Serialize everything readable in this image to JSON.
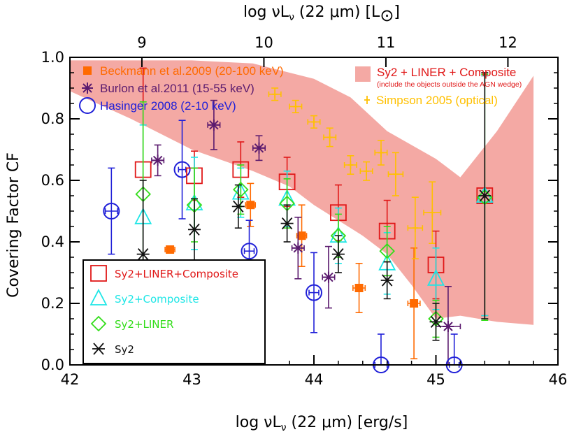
{
  "chart_data": {
    "type": "scatter",
    "title": "",
    "xlabel": "log  νL",
    "xlabel_sub": "ν",
    "xlabel_rest": " (22 μm) [erg/s]",
    "ylabel": "Covering Factor CF",
    "top_xlabel": "log  νL",
    "top_xlabel_sub": "ν",
    "top_xlabel_rest": " (22 μm) [L",
    "top_xlabel_sun": "⊙",
    "top_xlabel_end": "]",
    "xlim": [
      42,
      46
    ],
    "ylim": [
      0.0,
      1.0
    ],
    "x_ticks": [
      "42",
      "43",
      "44",
      "45",
      "46"
    ],
    "y_ticks": [
      "0.0",
      "0.2",
      "0.4",
      "0.6",
      "0.8",
      "1.0"
    ],
    "top_ticks": [
      "9",
      "10",
      "11",
      "12"
    ],
    "top_tick_positions_data": [
      42.59,
      43.59,
      44.59,
      45.59
    ],
    "shaded_region": {
      "name": "Sy2 + LINER + Composite",
      "note": "(include the objects outside the AGN wedge)",
      "color": "#f4a9a4",
      "upper": [
        [
          42.0,
          0.99
        ],
        [
          42.5,
          0.99
        ],
        [
          43.0,
          0.99
        ],
        [
          43.5,
          0.98
        ],
        [
          44.0,
          0.93
        ],
        [
          44.3,
          0.87
        ],
        [
          44.6,
          0.76
        ],
        [
          45.0,
          0.67
        ],
        [
          45.2,
          0.61
        ],
        [
          45.5,
          0.76
        ],
        [
          45.8,
          0.94
        ]
      ],
      "lower": [
        [
          45.8,
          0.13
        ],
        [
          45.5,
          0.14
        ],
        [
          45.2,
          0.16
        ],
        [
          45.0,
          0.15
        ],
        [
          44.8,
          0.26
        ],
        [
          44.6,
          0.36
        ],
        [
          44.4,
          0.42
        ],
        [
          44.2,
          0.47
        ],
        [
          44.0,
          0.52
        ],
        [
          43.8,
          0.58
        ],
        [
          43.5,
          0.63
        ],
        [
          43.0,
          0.7
        ],
        [
          42.5,
          0.8
        ],
        [
          42.0,
          0.89
        ]
      ]
    },
    "series": [
      {
        "name": "Beckmann et al.2009 (20-100 keV)",
        "color": "#ff6a00",
        "marker": "filled-square",
        "points": [
          [
            42.82,
            0.375,
            0.0,
            0.0,
            0.04
          ],
          [
            43.48,
            0.52,
            0.07,
            0.07,
            0.04
          ],
          [
            43.9,
            0.42,
            0.1,
            0.1,
            0.04
          ],
          [
            44.37,
            0.25,
            0.08,
            0.08,
            0.05
          ],
          [
            44.82,
            0.2,
            0.18,
            0.18,
            0.05
          ]
        ]
      },
      {
        "name": "Burlon et al.2011 (15-55 keV)",
        "color": "#5a1a6e",
        "marker": "star",
        "points": [
          [
            42.72,
            0.665,
            0.05,
            0.05,
            0.05
          ],
          [
            43.18,
            0.78,
            0.08,
            0.08,
            0.05
          ],
          [
            43.55,
            0.705,
            0.04,
            0.04,
            0.05
          ],
          [
            43.87,
            0.38,
            0.1,
            0.1,
            0.05
          ],
          [
            44.12,
            0.285,
            0.1,
            0.1,
            0.05
          ],
          [
            45.1,
            0.125,
            0.13,
            0.13,
            0.1
          ]
        ]
      },
      {
        "name": "Hasinger 2008 (2-10 keV)",
        "color": "#2020d8",
        "marker": "circle-plus",
        "points": [
          [
            42.34,
            0.5,
            0.14,
            0.14,
            0.05
          ],
          [
            42.92,
            0.635,
            0.16,
            0.16,
            0.03
          ],
          [
            43.47,
            0.37,
            0.1,
            0.1,
            0.04
          ],
          [
            44.0,
            0.235,
            0.13,
            0.13,
            0.04
          ],
          [
            44.55,
            0.0,
            0.1,
            0.1,
            0.05
          ],
          [
            45.15,
            0.0,
            0.1,
            0.1,
            0.04
          ]
        ]
      },
      {
        "name": "Simpson 2005 (optical)",
        "color": "#ffc000",
        "marker": "cross",
        "points": [
          [
            43.68,
            0.88,
            0.02,
            0.02,
            0.05
          ],
          [
            43.85,
            0.84,
            0.02,
            0.02,
            0.05
          ],
          [
            44.0,
            0.79,
            0.02,
            0.02,
            0.05
          ],
          [
            44.13,
            0.74,
            0.03,
            0.03,
            0.05
          ],
          [
            44.3,
            0.65,
            0.03,
            0.03,
            0.05
          ],
          [
            44.43,
            0.63,
            0.03,
            0.03,
            0.05
          ],
          [
            44.55,
            0.69,
            0.04,
            0.04,
            0.05
          ],
          [
            44.67,
            0.62,
            0.07,
            0.07,
            0.06
          ],
          [
            44.83,
            0.445,
            0.1,
            0.1,
            0.06
          ],
          [
            44.97,
            0.495,
            0.1,
            0.1,
            0.07
          ]
        ]
      },
      {
        "name": "Sy2+LINER+Composite",
        "color": "#e01818",
        "marker": "open-square",
        "points": [
          [
            42.6,
            0.635,
            0.33,
            0.33
          ],
          [
            43.02,
            0.615,
            0.08,
            0.08
          ],
          [
            43.4,
            0.635,
            0.09,
            0.09
          ],
          [
            43.78,
            0.595,
            0.08,
            0.08
          ],
          [
            44.2,
            0.495,
            0.09,
            0.09
          ],
          [
            44.6,
            0.435,
            0.1,
            0.1
          ],
          [
            45.0,
            0.325,
            0.11,
            0.11
          ],
          [
            45.4,
            0.55,
            0.39,
            0.39
          ]
        ]
      },
      {
        "name": "Sy2+Composite",
        "color": "#1ee6e6",
        "marker": "open-triangle",
        "points": [
          [
            42.6,
            0.48,
            0.3,
            0.3
          ],
          [
            43.02,
            0.525,
            0.15,
            0.15
          ],
          [
            43.4,
            0.56,
            0.08,
            0.08
          ],
          [
            43.78,
            0.54,
            0.09,
            0.09
          ],
          [
            44.2,
            0.42,
            0.09,
            0.09
          ],
          [
            44.6,
            0.33,
            0.1,
            0.1
          ],
          [
            45.0,
            0.28,
            0.1,
            0.1
          ],
          [
            45.4,
            0.55,
            0.39,
            0.39
          ]
        ]
      },
      {
        "name": "Sy2+LINER",
        "color": "#33dd1a",
        "marker": "open-diamond",
        "points": [
          [
            42.6,
            0.555,
            0.3,
            0.3
          ],
          [
            43.02,
            0.52,
            0.12,
            0.12
          ],
          [
            43.4,
            0.57,
            0.08,
            0.08
          ],
          [
            43.78,
            0.525,
            0.08,
            0.08
          ],
          [
            44.2,
            0.42,
            0.07,
            0.07
          ],
          [
            44.6,
            0.37,
            0.08,
            0.08
          ],
          [
            45.0,
            0.15,
            0.06,
            0.06
          ],
          [
            45.4,
            0.545,
            0.4,
            0.4
          ]
        ]
      },
      {
        "name": "Sy2",
        "color": "#111111",
        "marker": "asterisk",
        "points": [
          [
            42.6,
            0.36,
            0.24,
            0.24
          ],
          [
            43.02,
            0.44,
            0.1,
            0.1
          ],
          [
            43.38,
            0.515,
            0.07,
            0.07
          ],
          [
            43.78,
            0.46,
            0.06,
            0.06
          ],
          [
            44.2,
            0.36,
            0.06,
            0.06
          ],
          [
            44.6,
            0.275,
            0.06,
            0.06
          ],
          [
            45.0,
            0.14,
            0.06,
            0.06
          ],
          [
            45.4,
            0.55,
            0.4,
            0.4
          ]
        ]
      }
    ],
    "legend_upper": [
      {
        "label": "Beckmann et al.2009 (20-100 keV)",
        "color": "#ff6a00",
        "marker": "filled-square"
      },
      {
        "label": "Burlon et al.2011 (15-55 keV)",
        "color": "#5a1a6e",
        "marker": "star"
      },
      {
        "label": "Hasinger 2008 (2-10 keV)",
        "color": "#2020d8",
        "marker": "circle"
      }
    ],
    "legend_right": [
      {
        "label": "Sy2 + LINER + Composite",
        "note": "(include the objects outside the AGN wedge)",
        "color": "#e01818",
        "marker": "shade"
      },
      {
        "label": "Simpson 2005 (optical)",
        "color": "#ffc000",
        "marker": "cross"
      }
    ],
    "legend_box": [
      {
        "label": "Sy2+LINER+Composite",
        "color": "#e01818",
        "marker": "open-square"
      },
      {
        "label": "Sy2+Composite",
        "color": "#1ee6e6",
        "marker": "open-triangle"
      },
      {
        "label": "Sy2+LINER",
        "color": "#33dd1a",
        "marker": "open-diamond"
      },
      {
        "label": "Sy2",
        "color": "#111111",
        "marker": "asterisk"
      }
    ]
  }
}
